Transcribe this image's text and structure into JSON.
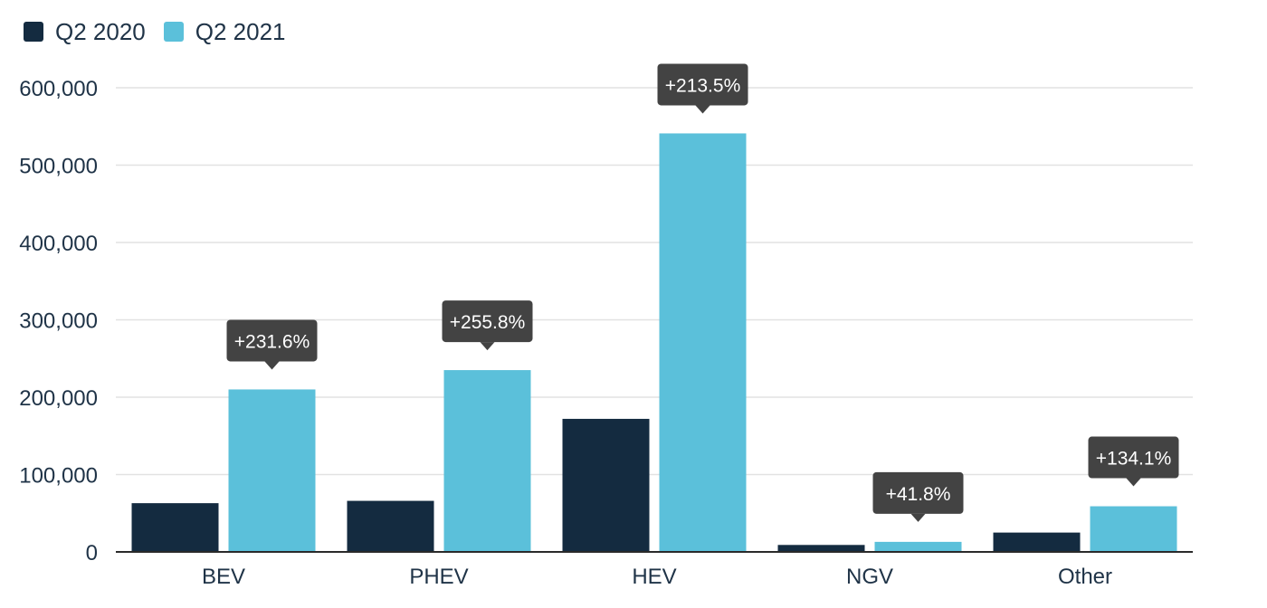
{
  "chart_data": {
    "type": "bar",
    "categories": [
      "BEV",
      "PHEV",
      "HEV",
      "NGV",
      "Other"
    ],
    "series": [
      {
        "name": "Q2 2020",
        "color": "#142b40",
        "values": [
          63000,
          66000,
          172000,
          9000,
          25000
        ]
      },
      {
        "name": "Q2 2021",
        "color": "#5bc0da",
        "values": [
          210000,
          235000,
          541000,
          13000,
          59000
        ]
      }
    ],
    "annotations": [
      "+231.6%",
      "+255.8%",
      "+213.5%",
      "+41.8%",
      "+134.1%"
    ],
    "yticks": [
      "0",
      "100,000",
      "200,000",
      "300,000",
      "400,000",
      "500,000",
      "600,000"
    ],
    "ylim": [
      0,
      600000
    ],
    "grid": true,
    "legend_position": "top-left",
    "title": "",
    "xlabel": "",
    "ylabel": ""
  },
  "colors": {
    "callout": "#434343",
    "grid": "#e2e2e2",
    "axis": "#2a2a2a",
    "text": "#1f3347"
  }
}
